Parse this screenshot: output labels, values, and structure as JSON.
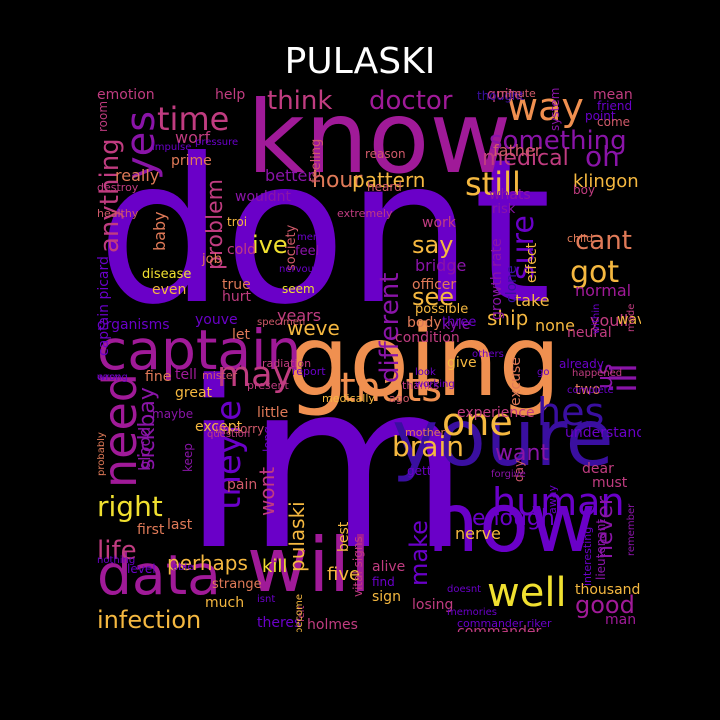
{
  "title": "PULASKI",
  "palette": {
    "dark_blue": "#3a0fa0",
    "violet": "#6a00c8",
    "purple": "#8a14a8",
    "magenta": "#a01a98",
    "pink": "#c03c80",
    "rose": "#d05a6a",
    "salmon": "#e07a58",
    "orange": "#f09050",
    "gold": "#f5b840",
    "yellow": "#f0e030"
  },
  "words": [
    {
      "text": "dont",
      "color": "violet"
    },
    {
      "text": "im",
      "color": "violet"
    },
    {
      "text": "going",
      "color": "orange"
    },
    {
      "text": "know",
      "color": "magenta"
    },
    {
      "text": "youre",
      "color": "dark_blue"
    },
    {
      "text": "now",
      "color": "violet"
    },
    {
      "text": "will",
      "color": "magenta"
    },
    {
      "text": "captain",
      "color": "magenta"
    },
    {
      "text": "data",
      "color": "magenta"
    },
    {
      "text": "well",
      "color": "yellow"
    },
    {
      "text": "way",
      "color": "orange"
    },
    {
      "text": "time",
      "color": "pink"
    },
    {
      "text": "yes",
      "color": "purple"
    },
    {
      "text": "thats",
      "color": "orange"
    },
    {
      "text": "need",
      "color": "magenta"
    },
    {
      "text": "theyre",
      "color": "violet"
    },
    {
      "text": "hes",
      "color": "dark_blue"
    },
    {
      "text": "human",
      "color": "violet"
    },
    {
      "text": "one",
      "color": "gold"
    },
    {
      "text": "may",
      "color": "pink"
    },
    {
      "text": "doctor",
      "color": "magenta"
    },
    {
      "text": "think",
      "color": "pink"
    },
    {
      "text": "something",
      "color": "purple"
    },
    {
      "text": "oh",
      "color": "purple"
    },
    {
      "text": "still",
      "color": "gold"
    },
    {
      "text": "hour",
      "color": "salmon"
    },
    {
      "text": "anything",
      "color": "pink"
    },
    {
      "text": "ill",
      "color": "purple"
    },
    {
      "text": "got",
      "color": "gold"
    },
    {
      "text": "cant",
      "color": "salmon"
    },
    {
      "text": "ive",
      "color": "yellow"
    },
    {
      "text": "say",
      "color": "gold"
    },
    {
      "text": "see",
      "color": "gold"
    },
    {
      "text": "sure",
      "color": "violet"
    },
    {
      "text": "different",
      "color": "purple"
    },
    {
      "text": "problem",
      "color": "pink"
    },
    {
      "text": "medical",
      "color": "pink"
    },
    {
      "text": "pattern",
      "color": "gold"
    },
    {
      "text": "right",
      "color": "yellow"
    },
    {
      "text": "life",
      "color": "pink"
    },
    {
      "text": "brain",
      "color": "gold"
    },
    {
      "text": "sickbay",
      "color": "purple"
    },
    {
      "text": "infection",
      "color": "gold"
    },
    {
      "text": "good",
      "color": "magenta"
    },
    {
      "text": "make",
      "color": "violet"
    },
    {
      "text": "never",
      "color": "purple"
    },
    {
      "text": "want",
      "color": "purple"
    },
    {
      "text": "enough",
      "color": "violet"
    },
    {
      "text": "weve",
      "color": "gold"
    },
    {
      "text": "ship",
      "color": "gold"
    },
    {
      "text": "us",
      "color": "purple"
    },
    {
      "text": "pulaski",
      "color": "gold"
    },
    {
      "text": "wont",
      "color": "pink"
    },
    {
      "text": "perhaps",
      "color": "gold"
    },
    {
      "text": "kill",
      "color": "yellow"
    },
    {
      "text": "five",
      "color": "gold"
    },
    {
      "text": "klingon",
      "color": "gold"
    },
    {
      "text": "really",
      "color": "salmon"
    },
    {
      "text": "blood",
      "color": "purple"
    },
    {
      "text": "baby",
      "color": "salmon"
    },
    {
      "text": "better",
      "color": "purple"
    },
    {
      "text": "worf",
      "color": "pink"
    },
    {
      "text": "father",
      "color": "rose"
    },
    {
      "text": "mean",
      "color": "pink"
    },
    {
      "text": "emotion",
      "color": "pink"
    },
    {
      "text": "help",
      "color": "pink"
    },
    {
      "text": "quite",
      "color": "pink"
    },
    {
      "text": "prime",
      "color": "salmon"
    },
    {
      "text": "captain picard",
      "color": "violet"
    },
    {
      "text": "growth rate",
      "color": "purple"
    },
    {
      "text": "bridge",
      "color": "purple"
    },
    {
      "text": "years",
      "color": "pink"
    },
    {
      "text": "take",
      "color": "gold"
    },
    {
      "text": "none",
      "color": "gold"
    },
    {
      "text": "normal",
      "color": "magenta"
    },
    {
      "text": "youll",
      "color": "pink"
    },
    {
      "text": "organisms",
      "color": "violet"
    },
    {
      "text": "youve",
      "color": "violet"
    },
    {
      "text": "let",
      "color": "salmon"
    },
    {
      "text": "much",
      "color": "gold"
    },
    {
      "text": "holmes",
      "color": "pink"
    },
    {
      "text": "commander",
      "color": "pink"
    },
    {
      "text": "commander riker",
      "color": "violet"
    },
    {
      "text": "thousand",
      "color": "gold"
    },
    {
      "text": "man",
      "color": "magenta"
    },
    {
      "text": "theres",
      "color": "violet"
    },
    {
      "text": "sign",
      "color": "gold"
    },
    {
      "text": "losing",
      "color": "pink"
    },
    {
      "text": "find",
      "color": "violet"
    },
    {
      "text": "alive",
      "color": "pink"
    },
    {
      "text": "nerve",
      "color": "gold"
    },
    {
      "text": "best",
      "color": "gold"
    },
    {
      "text": "vital signs",
      "color": "pink"
    },
    {
      "text": "first",
      "color": "salmon"
    },
    {
      "text": "last",
      "color": "salmon"
    },
    {
      "text": "level",
      "color": "violet"
    },
    {
      "text": "strange",
      "color": "salmon"
    },
    {
      "text": "except",
      "color": "gold"
    },
    {
      "text": "little",
      "color": "salmon"
    },
    {
      "text": "great",
      "color": "gold"
    },
    {
      "text": "fine",
      "color": "salmon"
    },
    {
      "text": "tell",
      "color": "magenta"
    },
    {
      "text": "maybe",
      "color": "purple"
    },
    {
      "text": "keep",
      "color": "purple"
    },
    {
      "text": "pain",
      "color": "rose"
    },
    {
      "text": "long",
      "color": "violet"
    },
    {
      "text": "dear",
      "color": "pink"
    },
    {
      "text": "must",
      "color": "pink"
    },
    {
      "text": "two",
      "color": "salmon"
    },
    {
      "text": "understand",
      "color": "violet"
    },
    {
      "text": "experience",
      "color": "pink"
    },
    {
      "text": "body",
      "color": "salmon"
    },
    {
      "text": "excuse",
      "color": "salmon"
    },
    {
      "text": "give",
      "color": "gold"
    },
    {
      "text": "neural",
      "color": "pink"
    },
    {
      "text": "already",
      "color": "violet"
    },
    {
      "text": "wave",
      "color": "gold"
    },
    {
      "text": "work",
      "color": "pink"
    },
    {
      "text": "whats",
      "color": "purple"
    },
    {
      "text": "risk",
      "color": "purple"
    },
    {
      "text": "effect",
      "color": "gold"
    },
    {
      "text": "clone",
      "color": "dark_blue"
    },
    {
      "text": "officer",
      "color": "salmon"
    },
    {
      "text": "possible",
      "color": "gold"
    },
    {
      "text": "condition",
      "color": "pink"
    },
    {
      "text": "kyle",
      "color": "purple"
    },
    {
      "text": "three",
      "color": "violet"
    },
    {
      "text": "seem",
      "color": "yellow"
    },
    {
      "text": "job",
      "color": "salmon"
    },
    {
      "text": "disease",
      "color": "yellow"
    },
    {
      "text": "even",
      "color": "gold"
    },
    {
      "text": "true",
      "color": "salmon"
    },
    {
      "text": "hurt",
      "color": "pink"
    },
    {
      "text": "cold",
      "color": "pink"
    },
    {
      "text": "feel",
      "color": "purple"
    },
    {
      "text": "wouldnt",
      "color": "purple"
    },
    {
      "text": "troi",
      "color": "gold"
    },
    {
      "text": "society",
      "color": "rose"
    },
    {
      "text": "feeling",
      "color": "rose"
    },
    {
      "text": "thought",
      "color": "dark_blue"
    },
    {
      "text": "minute",
      "color": "rose"
    },
    {
      "text": "system",
      "color": "purple"
    },
    {
      "text": "point",
      "color": "violet"
    },
    {
      "text": "come",
      "color": "rose"
    },
    {
      "text": "friend",
      "color": "violet"
    },
    {
      "text": "boy",
      "color": "pink"
    },
    {
      "text": "reason",
      "color": "rose"
    },
    {
      "text": "heard",
      "color": "rose"
    },
    {
      "text": "extremely",
      "color": "pink"
    },
    {
      "text": "room",
      "color": "pink"
    },
    {
      "text": "destroy",
      "color": "pink"
    },
    {
      "text": "healthy",
      "color": "rose"
    },
    {
      "text": "child",
      "color": "salmon"
    },
    {
      "text": "radiation",
      "color": "pink"
    },
    {
      "text": "report",
      "color": "violet"
    },
    {
      "text": "specimen",
      "color": "rose"
    },
    {
      "text": "mister",
      "color": "rose"
    },
    {
      "text": "present",
      "color": "pink"
    },
    {
      "text": "medically",
      "color": "gold"
    },
    {
      "text": "ago",
      "color": "rose"
    },
    {
      "text": "thanks",
      "color": "pink"
    },
    {
      "text": "mother",
      "color": "salmon"
    },
    {
      "text": "im sorry",
      "color": "rose"
    },
    {
      "text": "question",
      "color": "pink"
    },
    {
      "text": "probably",
      "color": "salmon"
    },
    {
      "text": "day",
      "color": "rose"
    },
    {
      "text": "forgive",
      "color": "purple"
    },
    {
      "text": "getting",
      "color": "violet"
    },
    {
      "text": "away",
      "color": "violet"
    },
    {
      "text": "interesting",
      "color": "violet"
    },
    {
      "text": "lieutenant",
      "color": "purple"
    },
    {
      "text": "remember",
      "color": "purple"
    },
    {
      "text": "made",
      "color": "pink"
    },
    {
      "text": "within",
      "color": "violet"
    },
    {
      "text": "complete",
      "color": "violet"
    },
    {
      "text": "happened",
      "color": "pink"
    },
    {
      "text": "doesnt",
      "color": "violet"
    },
    {
      "text": "memories",
      "color": "violet"
    },
    {
      "text": "able",
      "color": "violet"
    },
    {
      "text": "nothing",
      "color": "violet"
    },
    {
      "text": "easy",
      "color": "purple"
    },
    {
      "text": "isnt",
      "color": "violet"
    },
    {
      "text": "felt",
      "color": "pink"
    },
    {
      "text": "become",
      "color": "gold"
    },
    {
      "text": "men",
      "color": "violet"
    },
    {
      "text": "nervous",
      "color": "violet"
    },
    {
      "text": "others",
      "color": "violet"
    },
    {
      "text": "look",
      "color": "violet"
    },
    {
      "text": "working",
      "color": "violet"
    },
    {
      "text": "go",
      "color": "violet"
    },
    {
      "text": "wrong",
      "color": "violet"
    },
    {
      "text": "impulse",
      "color": "violet"
    },
    {
      "text": "pressure",
      "color": "violet"
    }
  ]
}
